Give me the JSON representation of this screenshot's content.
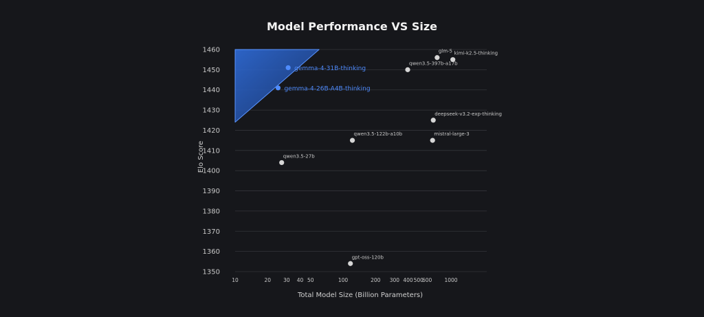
{
  "chart_data": {
    "type": "scatter",
    "title": "Model Performance VS Size",
    "xlabel": "Total Model Size (Billion Parameters)",
    "ylabel": "Elo Score",
    "xscale": "log",
    "xlim": [
      10,
      2000
    ],
    "ylim": [
      1350,
      1460
    ],
    "xticks": [
      10,
      20,
      30,
      40,
      50,
      100,
      200,
      300,
      400,
      500,
      600,
      1000
    ],
    "xtick_labels": [
      "10",
      "20",
      "30",
      "40",
      "50",
      "100",
      "200",
      "300",
      "400",
      "500",
      "600",
      "1000"
    ],
    "yticks": [
      1350,
      1360,
      1370,
      1380,
      1390,
      1400,
      1410,
      1420,
      1430,
      1440,
      1450,
      1460
    ],
    "grid": true,
    "highlight_region": {
      "description": "shaded triangle",
      "vertices": [
        [
          10,
          1460
        ],
        [
          60,
          1460
        ],
        [
          10,
          1424
        ]
      ],
      "color": "#2f6cd9"
    },
    "points": [
      {
        "label": "gemma-4-31B-thinking",
        "x": 31,
        "y": 1451,
        "highlight": true
      },
      {
        "label": "gemma-4-26B-A4B-thinking",
        "x": 25,
        "y": 1441,
        "highlight": true
      },
      {
        "label": "glm-5",
        "x": 744,
        "y": 1456,
        "highlight": false
      },
      {
        "label": "kimi-k2.5-thinking",
        "x": 1040,
        "y": 1455,
        "highlight": false
      },
      {
        "label": "qwen3.5-397b-a17b",
        "x": 397,
        "y": 1450,
        "highlight": false
      },
      {
        "label": "deepseek-v3.2-exp-thinking",
        "x": 685,
        "y": 1425,
        "highlight": false
      },
      {
        "label": "qwen3.5-122b-a10b",
        "x": 122,
        "y": 1415,
        "highlight": false
      },
      {
        "label": "mistral-large-3",
        "x": 675,
        "y": 1415,
        "highlight": false
      },
      {
        "label": "qwen3.5-27b",
        "x": 27,
        "y": 1404,
        "highlight": false
      },
      {
        "label": "gpt-oss-120b",
        "x": 117,
        "y": 1354,
        "highlight": false
      }
    ],
    "colors": {
      "highlight": "#4f8cff",
      "default": "#d6d6d6"
    }
  }
}
